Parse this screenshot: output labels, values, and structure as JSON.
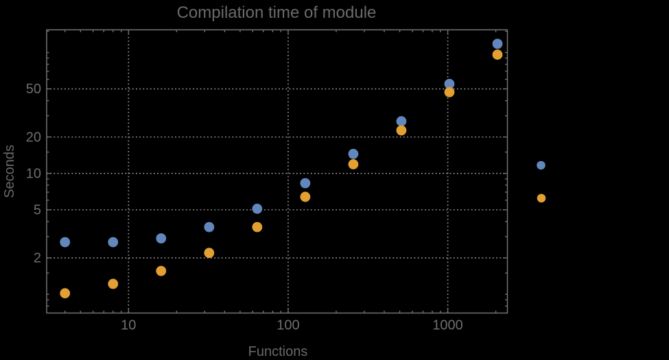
{
  "chart_data": {
    "type": "scatter",
    "title": "Compilation time of module",
    "xlabel": "Functions",
    "ylabel": "Seconds",
    "xscale": "log",
    "yscale": "log",
    "xlim": [
      3.07,
      2364
    ],
    "ylim": [
      0.7,
      154
    ],
    "grid": "major-only-dotted",
    "frame": true,
    "xticks": {
      "major": [
        10,
        100,
        1000
      ],
      "labels": [
        "10",
        "100",
        "1000"
      ],
      "minor": [
        4,
        5,
        6,
        7,
        8,
        9,
        20,
        30,
        40,
        50,
        60,
        70,
        80,
        90,
        200,
        300,
        400,
        500,
        600,
        700,
        800,
        900,
        2000
      ]
    },
    "yticks": {
      "major": [
        2,
        5,
        10,
        20,
        50
      ],
      "labels": [
        "2",
        "5",
        "10",
        "20",
        "50"
      ],
      "minor": [
        0.8,
        0.9,
        1,
        1.5,
        3,
        4,
        6,
        7,
        8,
        9,
        15,
        30,
        40,
        60,
        70,
        80,
        90,
        100,
        150
      ]
    },
    "series": [
      {
        "name": "series-1-blue",
        "color": "#6287bd",
        "x": [
          4,
          8,
          16,
          32,
          64,
          128,
          256,
          512,
          1024,
          2048
        ],
        "y": [
          2.7,
          2.7,
          2.9,
          3.6,
          5.1,
          8.3,
          14.5,
          27,
          55,
          118
        ]
      },
      {
        "name": "series-2-orange",
        "color": "#e2a033",
        "x": [
          4,
          8,
          16,
          32,
          64,
          128,
          256,
          512,
          1024,
          2048
        ],
        "y": [
          1.02,
          1.22,
          1.56,
          2.2,
          3.6,
          6.4,
          11.9,
          22.7,
          47,
          96
        ]
      }
    ],
    "legend": {
      "position": "right-outside",
      "labels_visible": false,
      "markers": [
        {
          "color": "#6287bd"
        },
        {
          "color": "#e2a033"
        }
      ]
    }
  },
  "colors": {
    "background": "#000000",
    "frame": "#757575",
    "gridlines": "#8b8b8b",
    "text": "#6e6e6e"
  }
}
